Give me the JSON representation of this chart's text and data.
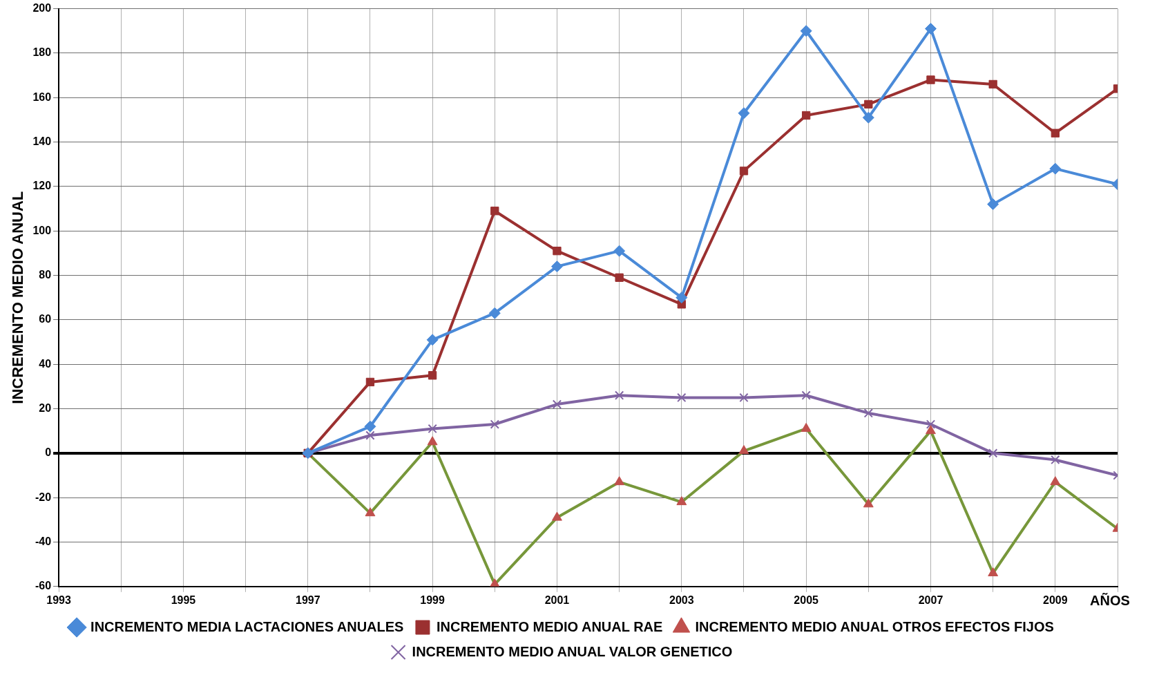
{
  "chart_data": {
    "type": "line",
    "ylabel": "INCREMENTO MEDIO ANUAL",
    "xlabel": "AÑOS",
    "x": [
      1997,
      1998,
      1999,
      2000,
      2001,
      2002,
      2003,
      2004,
      2005,
      2006,
      2007,
      2008,
      2009,
      2010
    ],
    "xlim": [
      1993,
      2010
    ],
    "xticks": [
      1993,
      {
        "value": 1994,
        "label": null
      },
      1995,
      {
        "value": 1996,
        "label": null
      },
      1997,
      {
        "value": 1998,
        "label": null
      },
      1999,
      {
        "value": 2000,
        "label": null
      },
      2001,
      {
        "value": 2002,
        "label": null
      },
      2003,
      {
        "value": 2004,
        "label": null
      },
      2005,
      {
        "value": 2006,
        "label": null
      },
      2007,
      {
        "value": 2008,
        "label": null
      },
      2009,
      {
        "value": 2010,
        "label": null
      }
    ],
    "ylim": [
      -60,
      200
    ],
    "yticks": [
      -60,
      -40,
      -20,
      0,
      20,
      40,
      60,
      80,
      100,
      120,
      140,
      160,
      180,
      200
    ],
    "grid": true,
    "legend": "bottom",
    "line_style": "solid",
    "series": [
      {
        "name": "INCREMENTO MEDIA LACTACIONES ANUALES",
        "color": "#4a8ad8",
        "marker": "diamond",
        "values": [
          0,
          12,
          51,
          63,
          84,
          91,
          70,
          153,
          190,
          151,
          191,
          112,
          128,
          121
        ]
      },
      {
        "name": "INCREMENTO MEDIO ANUAL RAE",
        "color": "#9b3030",
        "marker": "square",
        "values": [
          0,
          32,
          35,
          109,
          91,
          79,
          67,
          127,
          152,
          157,
          168,
          166,
          144,
          164
        ]
      },
      {
        "name": "INCREMENTO MEDIO ANUAL OTROS EFECTOS FIJOS",
        "color": "#77973a",
        "marker": "triangle",
        "colors": [
          "#c0504d",
          "#c0504d",
          "#c0504d",
          "#c0504d",
          "#c0504d",
          "#c0504d",
          "#c0504d",
          "#c0504d",
          "#c0504d",
          "#c0504d",
          "#c0504d",
          "#c0504d",
          "#c0504d",
          "#c0504d"
        ],
        "values": [
          0,
          -27,
          5,
          -59,
          -29,
          -13,
          -22,
          1,
          11,
          -23,
          10,
          -54,
          -13,
          -34
        ]
      },
      {
        "name": "INCREMENTO MEDIO ANUAL VALOR GENETICO",
        "color": "#8064a2",
        "marker": "cross",
        "values": [
          0,
          8,
          11,
          13,
          22,
          26,
          25,
          25,
          26,
          18,
          13,
          0,
          -3,
          -10
        ]
      }
    ]
  }
}
